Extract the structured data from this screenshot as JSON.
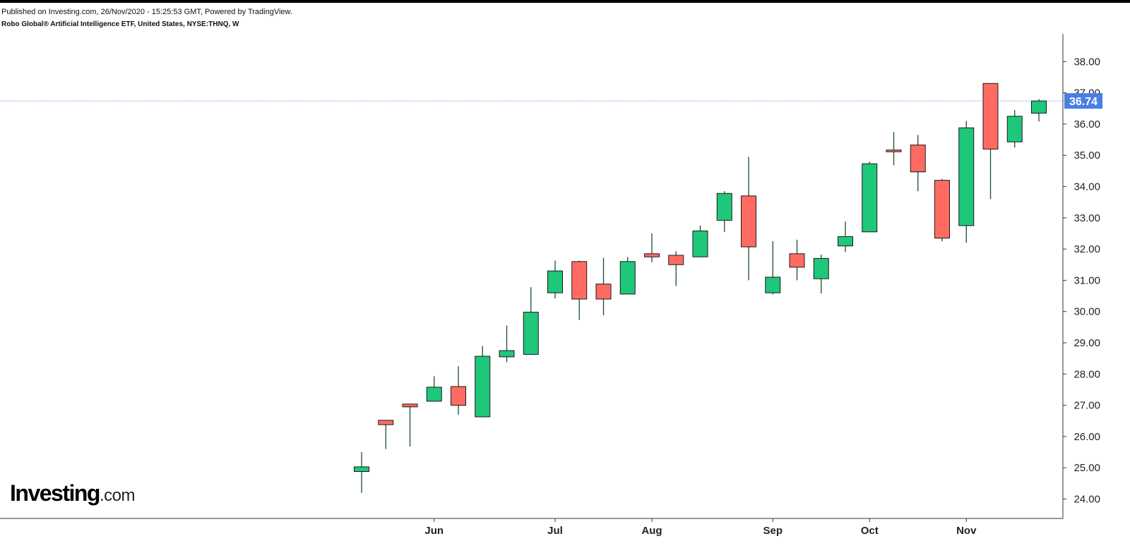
{
  "header": {
    "published": "Published on Investing.com, 26/Nov/2020 - 15:25:53 GMT, Powered by TradingView.",
    "title": "Robo Global® Artificial Intelligence ETF, United States, NYSE:THNQ, W"
  },
  "logo": {
    "brand": "Investing",
    "domain": ".com"
  },
  "colors": {
    "up": "#1fc77a",
    "down": "#ff6b63",
    "outline": "#1a1a1a",
    "wick": "#1b4d2e",
    "axis": "#333333",
    "last_price_bg": "#4a7ee3",
    "last_price_line": "#4a7ee3"
  },
  "chart_data": {
    "type": "candlestick",
    "interval": "W",
    "ylim": [
      23.4,
      39.0
    ],
    "y_ticks": [
      24,
      25,
      26,
      27,
      28,
      29,
      30,
      31,
      32,
      33,
      34,
      35,
      36,
      37,
      38
    ],
    "y_tick_labels": [
      "24.00",
      "25.00",
      "26.00",
      "27.00",
      "28.00",
      "29.00",
      "30.00",
      "31.00",
      "32.00",
      "33.00",
      "34.00",
      "35.00",
      "36.00",
      "37.00",
      "38.00"
    ],
    "x_ticks": [
      {
        "label": "Jun",
        "index": 3
      },
      {
        "label": "Jul",
        "index": 8
      },
      {
        "label": "Aug",
        "index": 12
      },
      {
        "label": "Sep",
        "index": 17
      },
      {
        "label": "Oct",
        "index": 21
      },
      {
        "label": "Nov",
        "index": 25
      }
    ],
    "last_price": 36.74,
    "last_price_label": "36.74",
    "candles": [
      {
        "o": 24.88,
        "h": 25.5,
        "l": 24.2,
        "c": 25.03
      },
      {
        "o": 26.52,
        "h": 26.52,
        "l": 25.6,
        "c": 26.38
      },
      {
        "o": 27.04,
        "h": 27.04,
        "l": 25.68,
        "c": 26.95
      },
      {
        "o": 27.13,
        "h": 27.93,
        "l": 27.13,
        "c": 27.58
      },
      {
        "o": 27.6,
        "h": 28.25,
        "l": 26.7,
        "c": 27.0
      },
      {
        "o": 26.63,
        "h": 28.9,
        "l": 26.63,
        "c": 28.57
      },
      {
        "o": 28.55,
        "h": 29.55,
        "l": 28.38,
        "c": 28.75
      },
      {
        "o": 28.63,
        "h": 30.78,
        "l": 28.63,
        "c": 29.98
      },
      {
        "o": 30.6,
        "h": 31.63,
        "l": 30.42,
        "c": 31.3
      },
      {
        "o": 31.6,
        "h": 31.63,
        "l": 29.73,
        "c": 30.4
      },
      {
        "o": 30.88,
        "h": 31.72,
        "l": 29.88,
        "c": 30.4
      },
      {
        "o": 30.56,
        "h": 31.75,
        "l": 30.56,
        "c": 31.6
      },
      {
        "o": 31.85,
        "h": 32.5,
        "l": 31.58,
        "c": 31.75
      },
      {
        "o": 31.8,
        "h": 31.93,
        "l": 30.82,
        "c": 31.5
      },
      {
        "o": 31.75,
        "h": 32.75,
        "l": 31.75,
        "c": 32.58
      },
      {
        "o": 32.92,
        "h": 33.85,
        "l": 32.55,
        "c": 33.78
      },
      {
        "o": 33.7,
        "h": 34.95,
        "l": 31.0,
        "c": 32.07
      },
      {
        "o": 30.6,
        "h": 32.25,
        "l": 30.55,
        "c": 31.1
      },
      {
        "o": 31.85,
        "h": 32.3,
        "l": 31.0,
        "c": 31.42
      },
      {
        "o": 31.05,
        "h": 31.82,
        "l": 30.58,
        "c": 31.7
      },
      {
        "o": 32.1,
        "h": 32.88,
        "l": 31.9,
        "c": 32.4
      },
      {
        "o": 32.55,
        "h": 34.8,
        "l": 32.55,
        "c": 34.73
      },
      {
        "o": 35.17,
        "h": 35.75,
        "l": 34.68,
        "c": 35.15
      },
      {
        "o": 35.33,
        "h": 35.65,
        "l": 33.85,
        "c": 34.47
      },
      {
        "o": 34.2,
        "h": 34.25,
        "l": 32.25,
        "c": 32.35
      },
      {
        "o": 32.75,
        "h": 36.1,
        "l": 32.2,
        "c": 35.88
      },
      {
        "o": 37.3,
        "h": 37.3,
        "l": 33.6,
        "c": 35.2
      },
      {
        "o": 35.43,
        "h": 36.45,
        "l": 35.25,
        "c": 36.25
      },
      {
        "o": 36.35,
        "h": 36.8,
        "l": 36.08,
        "c": 36.74
      }
    ]
  }
}
